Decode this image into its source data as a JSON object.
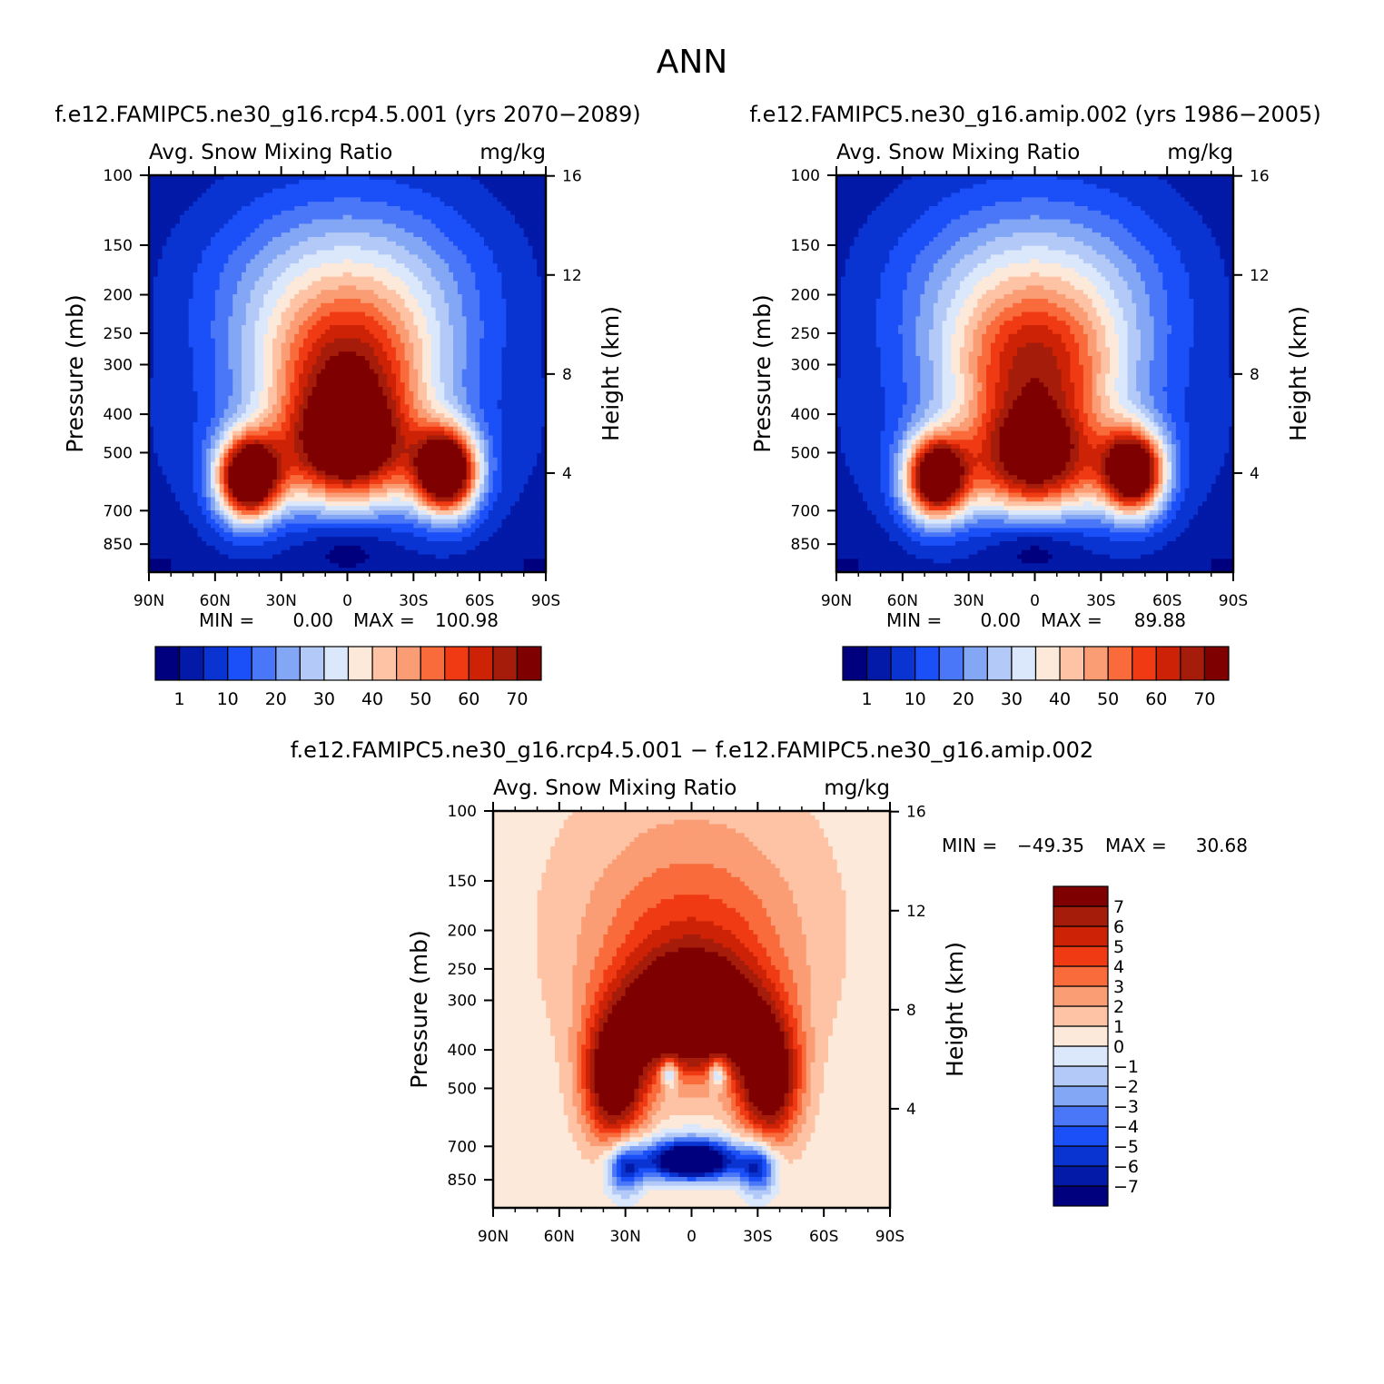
{
  "figure": {
    "title": "ANN"
  },
  "chart_data": [
    {
      "type": "heatmap",
      "case_title": "f.e12.FAMIPC5.ne30_g16.rcp4.5.001 (yrs 2070−2089)",
      "left_label": "Avg. Snow Mixing Ratio",
      "right_label": "mg/kg",
      "xlabel": "",
      "ylabel": "Pressure (mb)",
      "ylabel_right": "Height (km)",
      "x_ticks": [
        "90N",
        "60N",
        "30N",
        "0",
        "30S",
        "60S",
        "90S"
      ],
      "y_ticks": [
        "100",
        "150",
        "200",
        "250",
        "300",
        "400",
        "500",
        "700",
        "850"
      ],
      "y_ticks_right": [
        "16",
        "12",
        "8",
        "4"
      ],
      "stats": {
        "min_label": "MIN =",
        "min": "0.00",
        "max_label": "MAX =",
        "max": "100.98"
      },
      "levels": [
        1,
        5,
        10,
        15,
        20,
        25,
        30,
        35,
        40,
        45,
        50,
        55,
        60,
        65,
        70
      ],
      "level_labels": [
        "1",
        "10",
        "20",
        "30",
        "40",
        "50",
        "60",
        "70"
      ],
      "colors": [
        "#00007f",
        "#0319a8",
        "#0a34d2",
        "#1b4ff7",
        "#4a76f8",
        "#83a7f5",
        "#b3c9f7",
        "#dbe8fb",
        "#fde9d9",
        "#fdc3a4",
        "#fb9d74",
        "#fa6b3c",
        "#f03a14",
        "#cd2206",
        "#a51c0a",
        "#7f0000"
      ],
      "approx_max_pressure_mb": 525
    },
    {
      "type": "heatmap",
      "case_title": "f.e12.FAMIPC5.ne30_g16.amip.002 (yrs 1986−2005)",
      "left_label": "Avg. Snow Mixing Ratio",
      "right_label": "mg/kg",
      "xlabel": "",
      "ylabel": "Pressure (mb)",
      "ylabel_right": "Height (km)",
      "x_ticks": [
        "90N",
        "60N",
        "30N",
        "0",
        "30S",
        "60S",
        "90S"
      ],
      "y_ticks": [
        "100",
        "150",
        "200",
        "250",
        "300",
        "400",
        "500",
        "700",
        "850"
      ],
      "y_ticks_right": [
        "16",
        "12",
        "8",
        "4"
      ],
      "stats": {
        "min_label": "MIN =",
        "min": "0.00",
        "max_label": "MAX =",
        "max": "89.88"
      },
      "levels": [
        1,
        5,
        10,
        15,
        20,
        25,
        30,
        35,
        40,
        45,
        50,
        55,
        60,
        65,
        70
      ],
      "level_labels": [
        "1",
        "10",
        "20",
        "30",
        "40",
        "50",
        "60",
        "70"
      ],
      "colors": [
        "#00007f",
        "#0319a8",
        "#0a34d2",
        "#1b4ff7",
        "#4a76f8",
        "#83a7f5",
        "#b3c9f7",
        "#dbe8fb",
        "#fde9d9",
        "#fdc3a4",
        "#fb9d74",
        "#fa6b3c",
        "#f03a14",
        "#cd2206",
        "#a51c0a",
        "#7f0000"
      ],
      "approx_max_pressure_mb": 560
    },
    {
      "type": "heatmap",
      "case_title": "f.e12.FAMIPC5.ne30_g16.rcp4.5.001 − f.e12.FAMIPC5.ne30_g16.amip.002",
      "left_label": "Avg. Snow Mixing Ratio",
      "right_label": "mg/kg",
      "xlabel": "",
      "ylabel": "Pressure (mb)",
      "ylabel_right": "Height (km)",
      "x_ticks": [
        "90N",
        "60N",
        "30N",
        "0",
        "30S",
        "60S",
        "90S"
      ],
      "y_ticks": [
        "100",
        "150",
        "200",
        "250",
        "300",
        "400",
        "500",
        "700",
        "850"
      ],
      "y_ticks_right": [
        "16",
        "12",
        "8",
        "4"
      ],
      "stats": {
        "min_label": "MIN =",
        "min": "−49.35",
        "max_label": "MAX =",
        "max": "30.68"
      },
      "levels": [
        -7,
        -6,
        -5,
        -4,
        -3,
        -2,
        -1,
        0,
        1,
        2,
        3,
        4,
        5,
        6,
        7
      ],
      "level_labels": [
        "−7",
        "−6",
        "−5",
        "−4",
        "−3",
        "−2",
        "−1",
        "0",
        "1",
        "2",
        "3",
        "4",
        "5",
        "6",
        "7"
      ],
      "colors": [
        "#00007f",
        "#0319a8",
        "#0a34d2",
        "#1b4ff7",
        "#4a76f8",
        "#83a7f5",
        "#b3c9f7",
        "#dbe8fb",
        "#fde9d9",
        "#fdc3a4",
        "#fb9d74",
        "#fa6b3c",
        "#f03a14",
        "#cd2206",
        "#a51c0a",
        "#7f0000"
      ]
    }
  ]
}
